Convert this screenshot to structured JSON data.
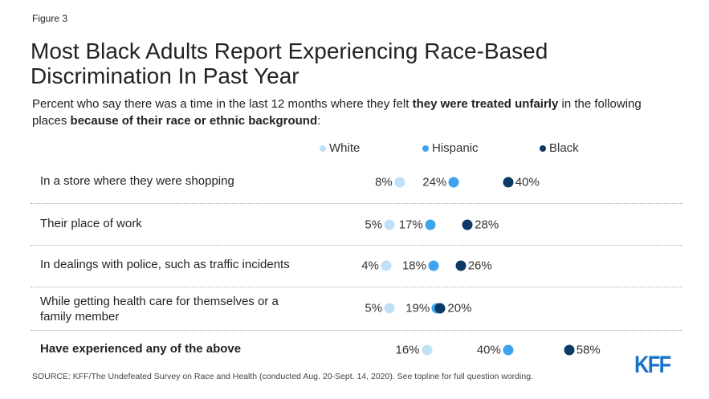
{
  "figure_label": "Figure 3",
  "logo": "KFF",
  "source": "SOURCE: KFF/The Undefeated Survey on Race and Health (conducted Aug. 20-Sept. 14, 2020). See topline for full question wording.",
  "chart_data": {
    "type": "scatter",
    "title": "Most Black Adults Report Experiencing Race-Based Discrimination In Past Year",
    "subtitle_parts": [
      "Percent who say there was a time in the last 12 months where they felt ",
      "they were treated unfairly",
      " in the following places ",
      "because of their race or ethnic background",
      ":"
    ],
    "legend_placement": "top",
    "series": [
      {
        "name": "White",
        "color": "#bfe0f7",
        "values": [
          8,
          5,
          4,
          5,
          16
        ]
      },
      {
        "name": "Hispanic",
        "color": "#3ea3ee",
        "values": [
          24,
          17,
          18,
          19,
          40
        ]
      },
      {
        "name": "Black",
        "color": "#0b3a66",
        "values": [
          40,
          28,
          26,
          20,
          58
        ]
      }
    ],
    "categories": [
      "In a store where they were shopping",
      "Their place of work",
      "In dealings with police, such as traffic incidents",
      "While getting health care for themselves or a family member",
      "Have experienced any of the above"
    ],
    "labels": [
      [
        "8%",
        "24%",
        "40%"
      ],
      [
        "5%",
        "17%",
        "28%"
      ],
      [
        "4%",
        "18%",
        "26%"
      ],
      [
        "5%",
        "19%",
        "20%"
      ],
      [
        "16%",
        "40%",
        "58%"
      ]
    ],
    "xlim": [
      0,
      100
    ]
  }
}
